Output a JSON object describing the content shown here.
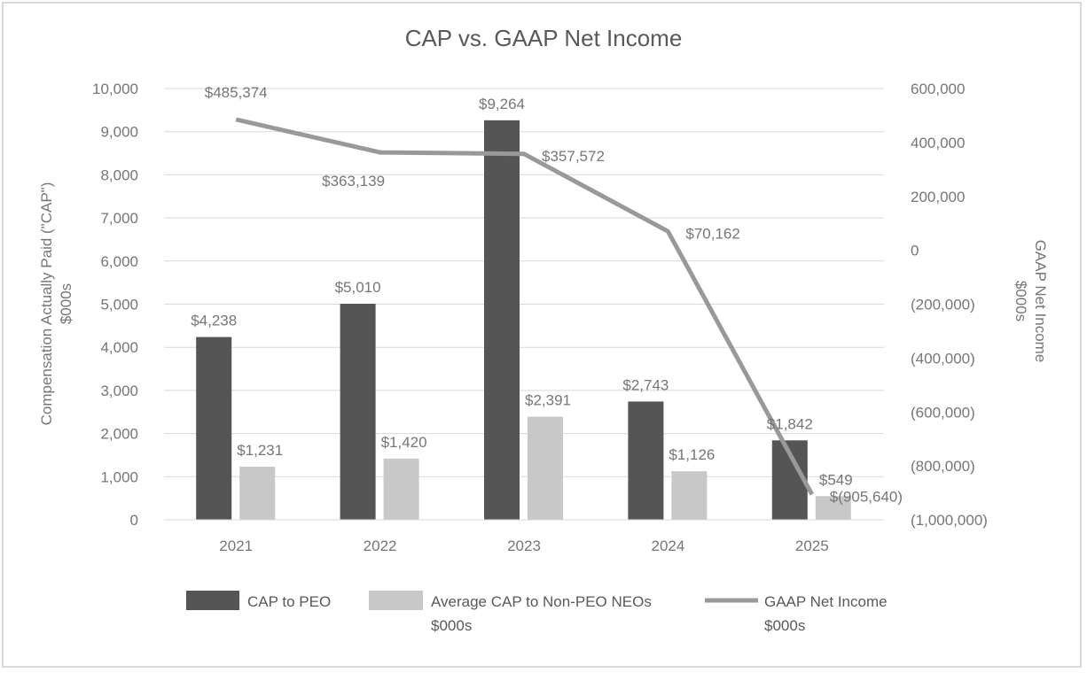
{
  "chart_data": {
    "type": "bar",
    "title": "CAP vs. GAAP Net Income",
    "categories": [
      "2021",
      "2022",
      "2023",
      "2024",
      "2025"
    ],
    "series": [
      {
        "name": "CAP to PEO",
        "type": "bar",
        "axis": "left",
        "color": "#555555",
        "values": [
          4238,
          5010,
          9264,
          2743,
          1842
        ],
        "labels": [
          "$4,238",
          "$5,010",
          "$9,264",
          "$2,743",
          "$1,842"
        ]
      },
      {
        "name": "Average CAP to Non-PEO NEOs $000s",
        "name_lines": [
          "Average CAP to Non-PEO NEOs",
          "$000s"
        ],
        "type": "bar",
        "axis": "left",
        "color": "#c8c8c8",
        "values": [
          1231,
          1420,
          2391,
          1126,
          549
        ],
        "labels": [
          "$1,231",
          "$1,420",
          "$2,391",
          "$1,126",
          "$549"
        ]
      },
      {
        "name": "GAAP Net Income $000s",
        "name_lines": [
          "GAAP Net Income",
          "$000s"
        ],
        "type": "line",
        "axis": "right",
        "color": "#999999",
        "values": [
          485374,
          363139,
          357572,
          70162,
          -905640
        ],
        "labels": [
          "$485,374",
          "$363,139",
          "$357,572",
          "$70,162",
          "$(905,640)"
        ]
      }
    ],
    "y_left": {
      "label_lines": [
        "Compensation Actually Paid (\"CAP\")",
        "$000s"
      ],
      "min": 0,
      "max": 10000,
      "ticks": [
        0,
        1000,
        2000,
        3000,
        4000,
        5000,
        6000,
        7000,
        8000,
        9000,
        10000
      ],
      "tick_labels": [
        "0",
        "1,000",
        "2,000",
        "3,000",
        "4,000",
        "5,000",
        "6,000",
        "7,000",
        "8,000",
        "9,000",
        "10,000"
      ]
    },
    "y_right": {
      "label_lines": [
        "GAAP Net Income",
        "$000s"
      ],
      "min": -1000000,
      "max": 600000,
      "ticks": [
        -1000000,
        -800000,
        -600000,
        -400000,
        -200000,
        0,
        200000,
        400000,
        600000
      ],
      "tick_labels": [
        "(1,000,000)",
        "(800,000)",
        "(600,000)",
        "(400,000)",
        "(200,000)",
        "0",
        "200,000",
        "400,000",
        "600,000"
      ]
    },
    "grid": true,
    "legend": "bottom"
  }
}
